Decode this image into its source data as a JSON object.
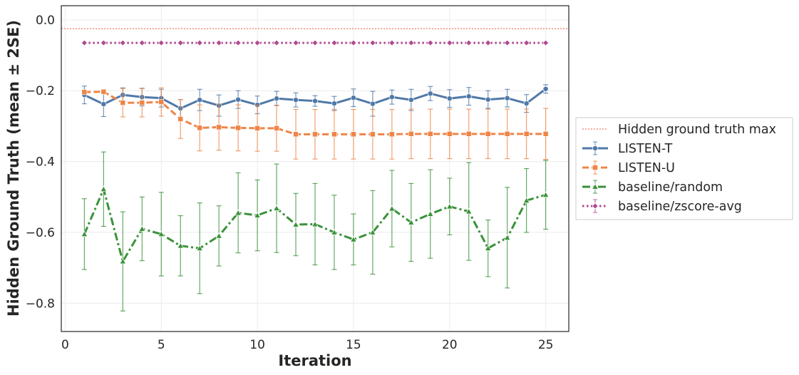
{
  "chart_data": {
    "type": "line",
    "title": "",
    "xlabel": "Iteration",
    "ylabel": "Hidden Ground Truth (mean ± 2SE)",
    "xlim": [
      -0.2,
      26.2
    ],
    "ylim": [
      -0.88,
      0.04
    ],
    "xticks": [
      0,
      5,
      10,
      15,
      20,
      25
    ],
    "yticks": [
      0.0,
      -0.2,
      -0.4,
      -0.6,
      -0.8
    ],
    "xtick_labels": [
      "0",
      "5",
      "10",
      "15",
      "20",
      "25"
    ],
    "ytick_labels": [
      "0.0",
      "−0.2",
      "−0.4",
      "−0.6",
      "−0.8"
    ],
    "grid": true,
    "legend_position": "right",
    "reference_line": {
      "name": "Hidden ground truth max",
      "y": -0.025,
      "color": "#f28e7c"
    },
    "x": [
      1,
      2,
      3,
      4,
      5,
      6,
      7,
      8,
      9,
      10,
      11,
      12,
      13,
      14,
      15,
      16,
      17,
      18,
      19,
      20,
      21,
      22,
      23,
      24,
      25
    ],
    "series": [
      {
        "name": "LISTEN-T",
        "color": "#5079a8",
        "style": "solid",
        "marker": "circle",
        "values": [
          -0.212,
          -0.238,
          -0.212,
          -0.218,
          -0.221,
          -0.25,
          -0.226,
          -0.242,
          -0.225,
          -0.24,
          -0.222,
          -0.226,
          -0.229,
          -0.236,
          -0.22,
          -0.237,
          -0.218,
          -0.226,
          -0.208,
          -0.222,
          -0.216,
          -0.225,
          -0.221,
          -0.236,
          -0.195
        ],
        "errors": [
          0.025,
          0.035,
          0.02,
          0.025,
          0.025,
          0.025,
          0.03,
          0.03,
          0.025,
          0.025,
          0.02,
          0.02,
          0.015,
          0.02,
          0.025,
          0.035,
          0.02,
          0.03,
          0.02,
          0.025,
          0.025,
          0.025,
          0.025,
          0.025,
          0.012
        ]
      },
      {
        "name": "LISTEN-U",
        "color": "#ee8548",
        "style": "dashed",
        "marker": "square",
        "values": [
          -0.204,
          -0.203,
          -0.234,
          -0.234,
          -0.232,
          -0.28,
          -0.305,
          -0.303,
          -0.305,
          -0.306,
          -0.306,
          -0.323,
          -0.323,
          -0.323,
          -0.323,
          -0.323,
          -0.323,
          -0.322,
          -0.322,
          -0.322,
          -0.322,
          -0.322,
          -0.322,
          -0.322,
          -0.322
        ],
        "errors": [
          0.005,
          0.005,
          0.04,
          0.04,
          0.04,
          0.055,
          0.065,
          0.065,
          0.065,
          0.065,
          0.065,
          0.07,
          0.07,
          0.07,
          0.07,
          0.07,
          0.07,
          0.07,
          0.07,
          0.07,
          0.07,
          0.07,
          0.07,
          0.07,
          0.072
        ]
      },
      {
        "name": "baseline/random",
        "color": "#3a923a",
        "style": "dashdot",
        "marker": "triangle",
        "values": [
          -0.605,
          -0.478,
          -0.682,
          -0.59,
          -0.605,
          -0.638,
          -0.645,
          -0.61,
          -0.545,
          -0.552,
          -0.532,
          -0.578,
          -0.577,
          -0.6,
          -0.62,
          -0.6,
          -0.533,
          -0.572,
          -0.548,
          -0.527,
          -0.541,
          -0.645,
          -0.615,
          -0.51,
          -0.494
        ],
        "errors": [
          0.1,
          0.105,
          0.14,
          0.09,
          0.118,
          0.085,
          0.128,
          0.085,
          0.113,
          0.1,
          0.125,
          0.088,
          0.115,
          0.105,
          0.072,
          0.118,
          0.108,
          0.11,
          0.125,
          0.08,
          0.138,
          0.08,
          0.142,
          0.09,
          0.097
        ]
      },
      {
        "name": "baseline/zscore-avg",
        "color": "#b04a8e",
        "style": "dotted",
        "marker": "diamond",
        "values": [
          -0.065,
          -0.065,
          -0.065,
          -0.065,
          -0.065,
          -0.065,
          -0.065,
          -0.065,
          -0.065,
          -0.065,
          -0.065,
          -0.065,
          -0.065,
          -0.065,
          -0.065,
          -0.065,
          -0.065,
          -0.065,
          -0.065,
          -0.065,
          -0.065,
          -0.065,
          -0.065,
          -0.065,
          -0.065
        ],
        "errors": [
          0,
          0,
          0,
          0,
          0,
          0,
          0,
          0,
          0,
          0,
          0,
          0,
          0,
          0,
          0,
          0,
          0,
          0,
          0,
          0,
          0,
          0,
          0,
          0,
          0
        ]
      }
    ]
  }
}
